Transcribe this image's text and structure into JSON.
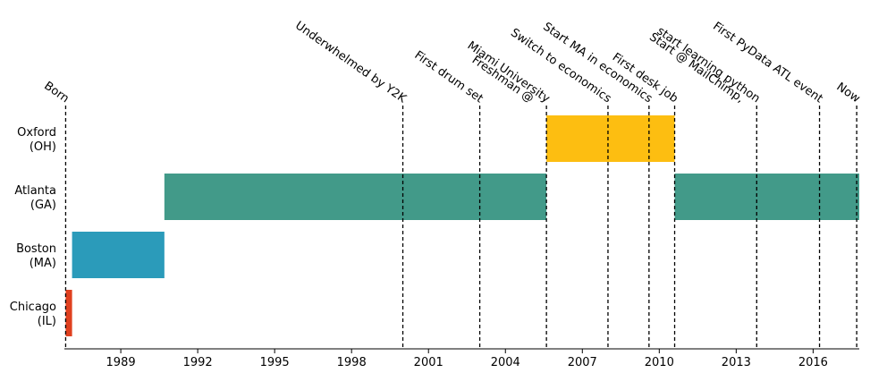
{
  "chart_data": {
    "type": "timeline",
    "title": "",
    "xlabel": "",
    "ylabel": "",
    "xlim": [
      1986.8,
      2017.8
    ],
    "x_ticks": [
      1989,
      1992,
      1995,
      1998,
      2001,
      2004,
      2007,
      2010,
      2013,
      2016
    ],
    "grid": false,
    "legend": "none",
    "categories": [
      "Chicago\n(IL)",
      "Boston\n(MA)",
      "Atlanta\n(GA)",
      "Oxford\n(OH)"
    ],
    "spans": [
      {
        "category": "Chicago\n(IL)",
        "start": 1986.85,
        "end": 1987.1,
        "color": "#e0401f"
      },
      {
        "category": "Boston\n(MA)",
        "start": 1987.1,
        "end": 1990.7,
        "color": "#2b9bba"
      },
      {
        "category": "Atlanta\n(GA)",
        "start": 1990.7,
        "end": 2005.6,
        "color": "#429a89"
      },
      {
        "category": "Oxford\n(OH)",
        "start": 2005.6,
        "end": 2010.6,
        "color": "#fdbe11"
      },
      {
        "category": "Atlanta\n(GA)",
        "start": 2010.6,
        "end": 2017.8,
        "color": "#429a89"
      }
    ],
    "events": [
      {
        "x": 1986.85,
        "label": "Born"
      },
      {
        "x": 2000.0,
        "label": "Underwhelmed by Y2K"
      },
      {
        "x": 2003.0,
        "label": "First drum set"
      },
      {
        "x": 2005.6,
        "label": "Miami University"
      },
      {
        "x": 2005.6,
        "label": "Freshman @"
      },
      {
        "x": 2008.0,
        "label": "Switch to economics"
      },
      {
        "x": 2009.6,
        "label": "Start MA in economics"
      },
      {
        "x": 2010.6,
        "label": "First desk job"
      },
      {
        "x": 2013.8,
        "label": "start learning python"
      },
      {
        "x": 2013.8,
        "label": "Start @ MailChimp,"
      },
      {
        "x": 2016.25,
        "label": "First PyData ATL event"
      },
      {
        "x": 2017.7,
        "label": "Now"
      }
    ]
  }
}
